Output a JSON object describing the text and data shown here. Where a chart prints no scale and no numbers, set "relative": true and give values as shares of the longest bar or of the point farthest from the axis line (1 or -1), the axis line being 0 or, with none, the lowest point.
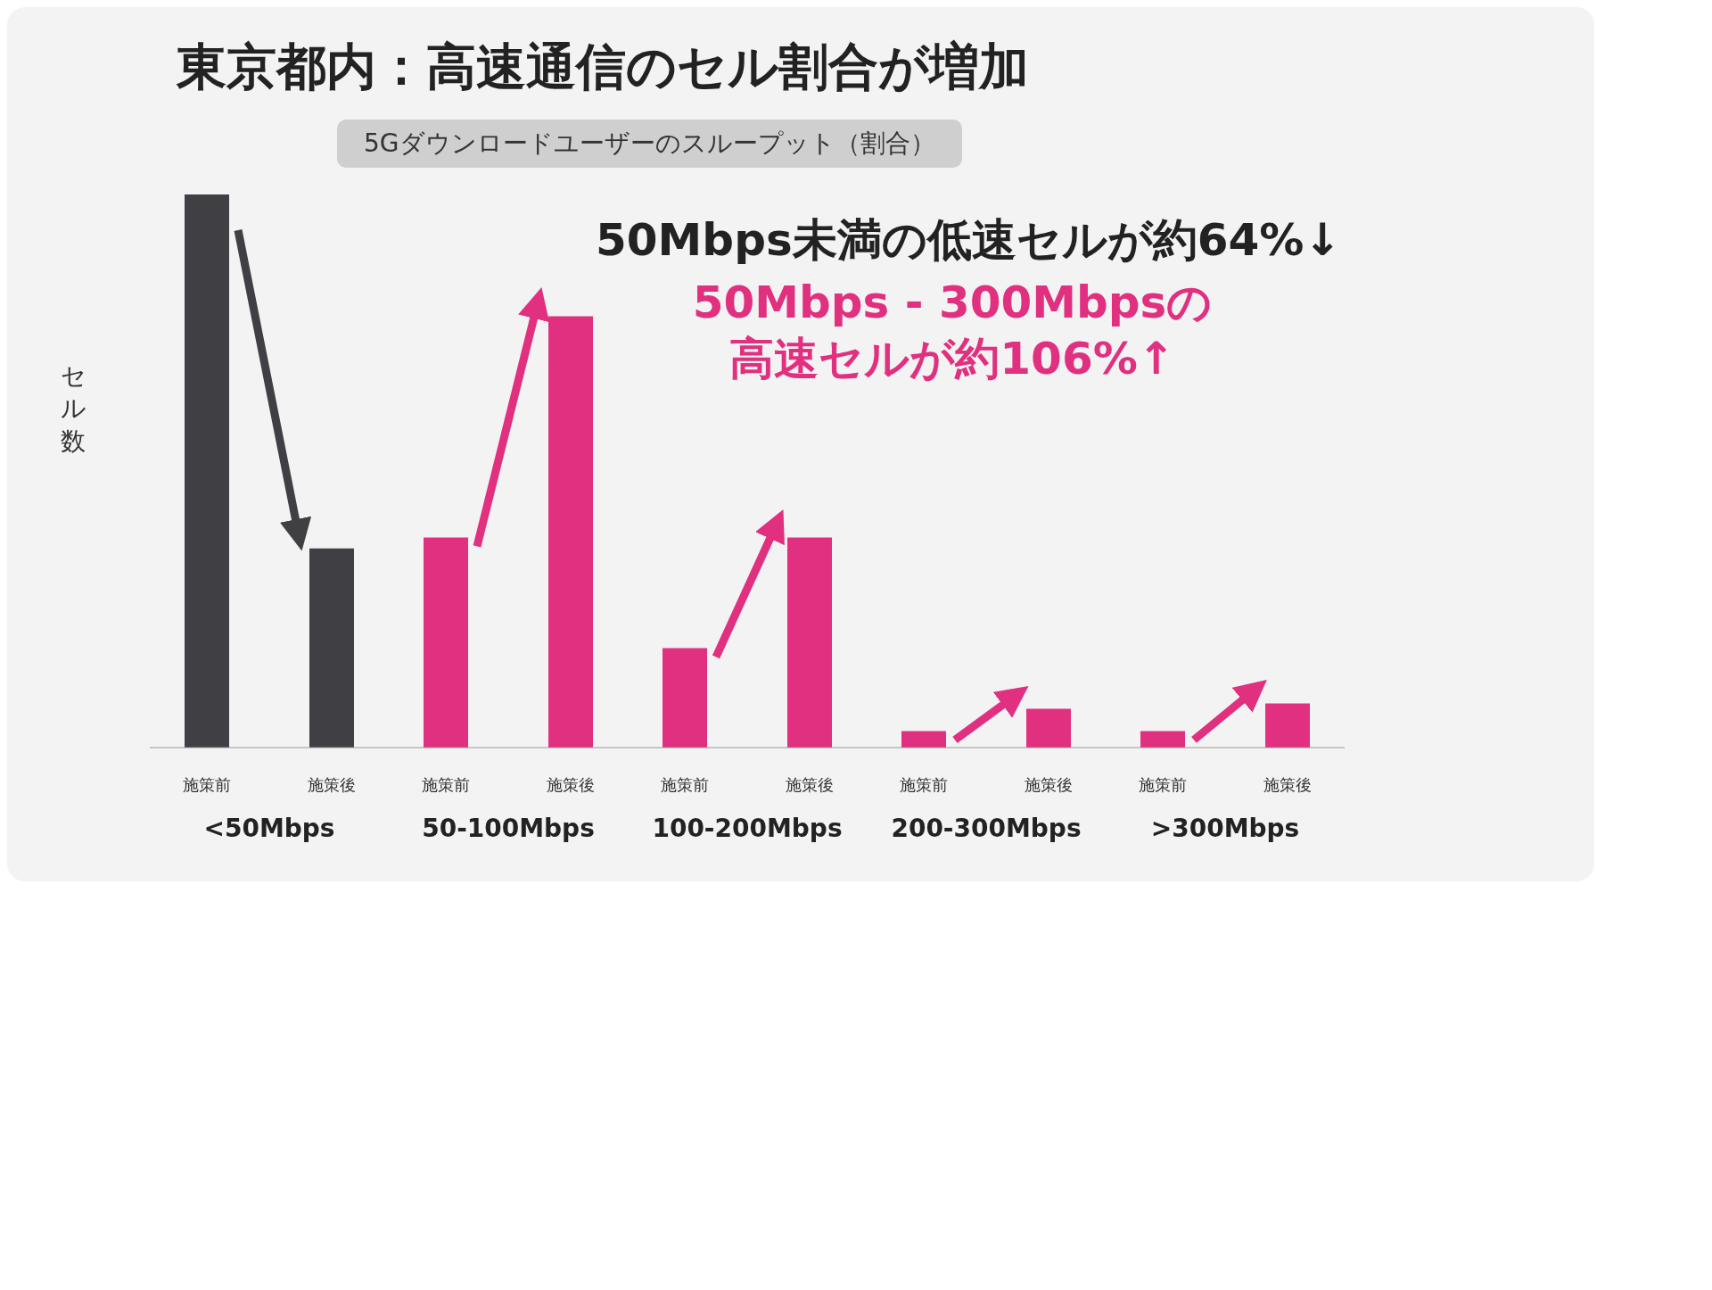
{
  "chart_data": {
    "type": "bar",
    "title": "東京都内：高速通信のセル割合が増加",
    "subtitle": "5Gダウンロードユーザーのスループット（割合）",
    "ylabel": "セル数",
    "relative": true,
    "categories": [
      "<50Mbps",
      "50-100Mbps",
      "100-200Mbps",
      "200-300Mbps",
      ">300Mbps"
    ],
    "series": [
      {
        "name": "施策前",
        "colors": [
          "#3f3f44",
          "#e0307f",
          "#e0307f",
          "#e0307f",
          "#e0307f"
        ],
        "values": [
          1,
          0.38,
          0.18,
          0.03,
          0.03
        ]
      },
      {
        "name": "施策後",
        "colors": [
          "#3f3f44",
          "#e0307f",
          "#e0307f",
          "#e0307f",
          "#e0307f"
        ],
        "values": [
          0.36,
          0.78,
          0.38,
          0.07,
          0.08
        ]
      }
    ],
    "annotations": [
      "50Mbps未満の低速セルが約64%↓",
      "50Mbps - 300Mbpsの高速セルが約106%↑"
    ]
  }
}
